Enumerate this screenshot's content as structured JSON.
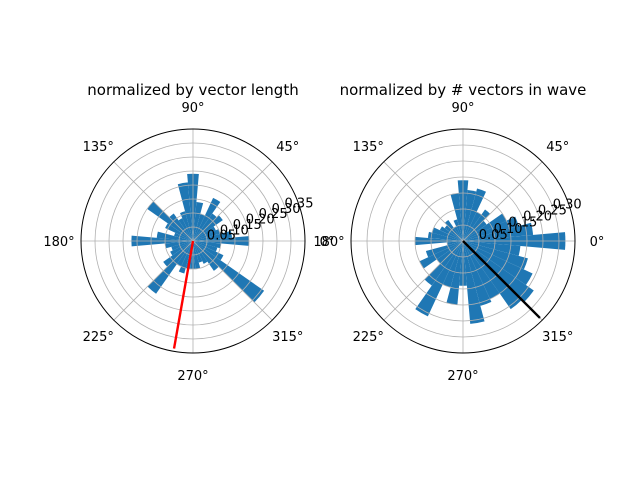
{
  "theme": {
    "bar_color": "#1f77b4",
    "grid_color": "#b0b0b0",
    "left_vector_color": "#ff0000",
    "right_vector_color": "#000000"
  },
  "chart_data": [
    {
      "type": "bar",
      "projection": "polar",
      "title": "normalized by vector length",
      "theta_tick_labels": [
        "0°",
        "45°",
        "90°",
        "135°",
        "180°",
        "225°",
        "270°",
        "315°"
      ],
      "r_tick_labels": [
        "0.05",
        "0.10",
        "0.15",
        "0.20",
        "0.25",
        "0.30",
        "0.35"
      ],
      "r_ticks": [
        0.05,
        0.1,
        0.15,
        0.2,
        0.25,
        0.3,
        0.35
      ],
      "rlim": [
        0,
        0.4
      ],
      "grid": true,
      "bin_count": 36,
      "bin_width_deg": 10,
      "bin_centers_deg": [
        0,
        10,
        20,
        30,
        40,
        50,
        60,
        70,
        80,
        90,
        100,
        110,
        120,
        130,
        140,
        150,
        160,
        170,
        180,
        190,
        200,
        210,
        220,
        230,
        240,
        250,
        260,
        270,
        280,
        290,
        300,
        310,
        320,
        330,
        340,
        350
      ],
      "values": [
        0.2,
        0.14,
        0.1,
        0.09,
        0.13,
        0.12,
        0.17,
        0.1,
        0.14,
        0.24,
        0.21,
        0.11,
        0.09,
        0.12,
        0.2,
        0.11,
        0.07,
        0.13,
        0.22,
        0.1,
        0.08,
        0.09,
        0.13,
        0.23,
        0.1,
        0.12,
        0.1,
        0.1,
        0.1,
        0.08,
        0.09,
        0.13,
        0.31,
        0.12,
        0.09,
        0.1
      ],
      "mean_vector": {
        "angle_deg": 260,
        "r": 0.39
      }
    },
    {
      "type": "bar",
      "projection": "polar",
      "title": "normalized by # vectors in wave",
      "theta_tick_labels": [
        "0°",
        "45°",
        "90°",
        "135°",
        "180°",
        "225°",
        "270°",
        "315°"
      ],
      "r_tick_labels": [
        "0.05",
        "0.10",
        "0.15",
        "0.20",
        "0.25",
        "0.30"
      ],
      "r_ticks": [
        0.05,
        0.1,
        0.15,
        0.2,
        0.25,
        0.3
      ],
      "rlim": [
        0,
        0.35
      ],
      "grid": true,
      "bin_count": 36,
      "bin_width_deg": 10,
      "bin_centers_deg": [
        0,
        10,
        20,
        30,
        40,
        50,
        60,
        70,
        80,
        90,
        100,
        110,
        120,
        130,
        140,
        150,
        160,
        170,
        180,
        190,
        200,
        210,
        220,
        230,
        240,
        250,
        260,
        270,
        280,
        290,
        300,
        310,
        320,
        330,
        340,
        350
      ],
      "values": [
        0.32,
        0.22,
        0.18,
        0.15,
        0.09,
        0.12,
        0.1,
        0.17,
        0.16,
        0.19,
        0.15,
        0.07,
        0.05,
        0.08,
        0.07,
        0.08,
        0.1,
        0.11,
        0.15,
        0.05,
        0.12,
        0.15,
        0.1,
        0.17,
        0.26,
        0.15,
        0.2,
        0.14,
        0.26,
        0.21,
        0.2,
        0.26,
        0.27,
        0.24,
        0.21,
        0.18
      ],
      "mean_vector": {
        "angle_deg": 315,
        "r": 0.34
      }
    }
  ]
}
